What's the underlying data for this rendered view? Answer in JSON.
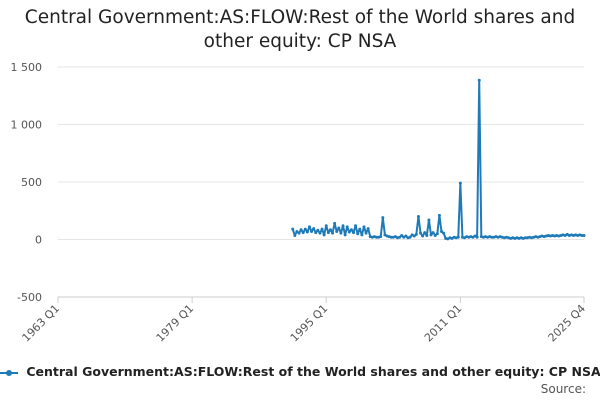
{
  "chart_data": {
    "type": "line",
    "title_lines": [
      "Central Government:AS:FLOW:Rest of the World shares and",
      "other equity: CP NSA"
    ],
    "xlabel": "",
    "ylabel": "",
    "ylim": [
      -500,
      1500
    ],
    "yticks": [
      -500,
      0,
      500,
      1000,
      1500
    ],
    "ytick_labels": [
      "-500",
      "0",
      "500",
      "1 000",
      "1 500"
    ],
    "xlim_quarter_index": [
      0,
      251
    ],
    "xticks": [
      {
        "label": "1963 Q1",
        "q": 0
      },
      {
        "label": "1979 Q1",
        "q": 64
      },
      {
        "label": "1995 Q1",
        "q": 128
      },
      {
        "label": "2011 Q1",
        "q": 192
      },
      {
        "label": "2025 Q4",
        "q": 251
      }
    ],
    "grid": true,
    "legend_position": "bottom",
    "series": [
      {
        "name": "Central Government:AS:FLOW:Rest of the World shares and other equity: CP NSA",
        "color": "#1f7ab8",
        "points": [
          [
            112,
            90
          ],
          [
            113,
            35
          ],
          [
            114,
            70
          ],
          [
            115,
            55
          ],
          [
            116,
            85
          ],
          [
            117,
            60
          ],
          [
            118,
            90
          ],
          [
            119,
            65
          ],
          [
            120,
            110
          ],
          [
            121,
            70
          ],
          [
            122,
            95
          ],
          [
            123,
            60
          ],
          [
            124,
            80
          ],
          [
            125,
            55
          ],
          [
            126,
            90
          ],
          [
            127,
            40
          ],
          [
            128,
            120
          ],
          [
            129,
            60
          ],
          [
            130,
            85
          ],
          [
            131,
            55
          ],
          [
            132,
            140
          ],
          [
            133,
            70
          ],
          [
            134,
            100
          ],
          [
            135,
            55
          ],
          [
            136,
            120
          ],
          [
            137,
            40
          ],
          [
            138,
            110
          ],
          [
            139,
            65
          ],
          [
            140,
            85
          ],
          [
            141,
            60
          ],
          [
            142,
            120
          ],
          [
            143,
            50
          ],
          [
            144,
            90
          ],
          [
            145,
            40
          ],
          [
            146,
            110
          ],
          [
            147,
            55
          ],
          [
            148,
            95
          ],
          [
            149,
            25
          ],
          [
            150,
            20
          ],
          [
            151,
            25
          ],
          [
            152,
            20
          ],
          [
            153,
            20
          ],
          [
            154,
            25
          ],
          [
            155,
            190
          ],
          [
            156,
            40
          ],
          [
            157,
            30
          ],
          [
            158,
            25
          ],
          [
            159,
            20
          ],
          [
            160,
            20
          ],
          [
            161,
            25
          ],
          [
            162,
            15
          ],
          [
            163,
            20
          ],
          [
            164,
            35
          ],
          [
            165,
            20
          ],
          [
            166,
            30
          ],
          [
            167,
            15
          ],
          [
            168,
            20
          ],
          [
            169,
            40
          ],
          [
            170,
            30
          ],
          [
            171,
            45
          ],
          [
            172,
            200
          ],
          [
            173,
            55
          ],
          [
            174,
            30
          ],
          [
            175,
            60
          ],
          [
            176,
            35
          ],
          [
            177,
            170
          ],
          [
            178,
            40
          ],
          [
            179,
            60
          ],
          [
            180,
            35
          ],
          [
            181,
            50
          ],
          [
            182,
            210
          ],
          [
            183,
            70
          ],
          [
            184,
            55
          ],
          [
            185,
            10
          ],
          [
            186,
            5
          ],
          [
            187,
            15
          ],
          [
            188,
            10
          ],
          [
            189,
            20
          ],
          [
            190,
            15
          ],
          [
            191,
            20
          ],
          [
            192,
            490
          ],
          [
            193,
            20
          ],
          [
            194,
            15
          ],
          [
            195,
            25
          ],
          [
            196,
            20
          ],
          [
            197,
            25
          ],
          [
            198,
            20
          ],
          [
            199,
            30
          ],
          [
            200,
            20
          ],
          [
            201,
            1385
          ],
          [
            202,
            25
          ],
          [
            203,
            20
          ],
          [
            204,
            25
          ],
          [
            205,
            20
          ],
          [
            206,
            25
          ],
          [
            207,
            20
          ],
          [
            208,
            20
          ],
          [
            209,
            25
          ],
          [
            210,
            20
          ],
          [
            211,
            25
          ],
          [
            212,
            20
          ],
          [
            213,
            15
          ],
          [
            214,
            20
          ],
          [
            215,
            15
          ],
          [
            216,
            10
          ],
          [
            217,
            15
          ],
          [
            218,
            10
          ],
          [
            219,
            15
          ],
          [
            220,
            10
          ],
          [
            221,
            15
          ],
          [
            222,
            10
          ],
          [
            223,
            15
          ],
          [
            224,
            15
          ],
          [
            225,
            20
          ],
          [
            226,
            15
          ],
          [
            227,
            20
          ],
          [
            228,
            25
          ],
          [
            229,
            20
          ],
          [
            230,
            25
          ],
          [
            231,
            30
          ],
          [
            232,
            25
          ],
          [
            233,
            30
          ],
          [
            234,
            35
          ],
          [
            235,
            30
          ],
          [
            236,
            35
          ],
          [
            237,
            30
          ],
          [
            238,
            35
          ],
          [
            239,
            30
          ],
          [
            240,
            35
          ],
          [
            241,
            40
          ],
          [
            242,
            35
          ],
          [
            243,
            45
          ],
          [
            244,
            35
          ],
          [
            245,
            40
          ],
          [
            246,
            35
          ],
          [
            247,
            40
          ],
          [
            248,
            35
          ],
          [
            249,
            40
          ],
          [
            250,
            35
          ],
          [
            251,
            35
          ]
        ]
      }
    ],
    "source_label": "Source:"
  }
}
